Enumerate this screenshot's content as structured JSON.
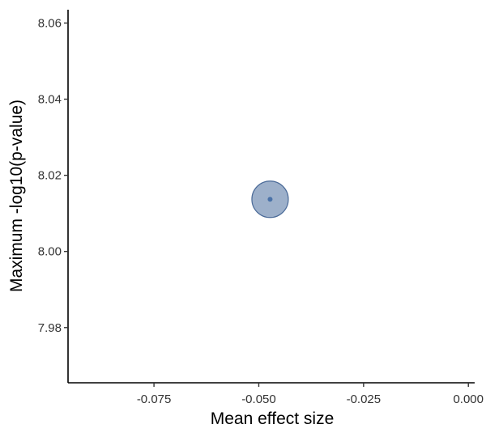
{
  "chart_data": {
    "type": "scatter",
    "title": "",
    "xlabel": "Mean effect size",
    "ylabel": "Maximum -log10(p-value)",
    "xlim": [
      -0.0955,
      0.0015
    ],
    "ylim": [
      7.9655,
      8.0635
    ],
    "x_ticks": [
      -0.075,
      -0.05,
      -0.025,
      0.0
    ],
    "x_tick_labels": [
      "-0.075",
      "-0.050",
      "-0.025",
      "0.000"
    ],
    "y_ticks": [
      7.98,
      8.0,
      8.02,
      8.04,
      8.06
    ],
    "y_tick_labels": [
      "7.98",
      "8.00",
      "8.02",
      "8.04",
      "8.06"
    ],
    "grid": false,
    "points": [
      {
        "x": -0.0473,
        "y": 8.0137,
        "bubble_size": "large"
      }
    ],
    "colors": {
      "bubble_fill": "#5b7ba6",
      "bubble_stroke": "#4a6a98",
      "center_dot": "#4a72a8"
    }
  }
}
